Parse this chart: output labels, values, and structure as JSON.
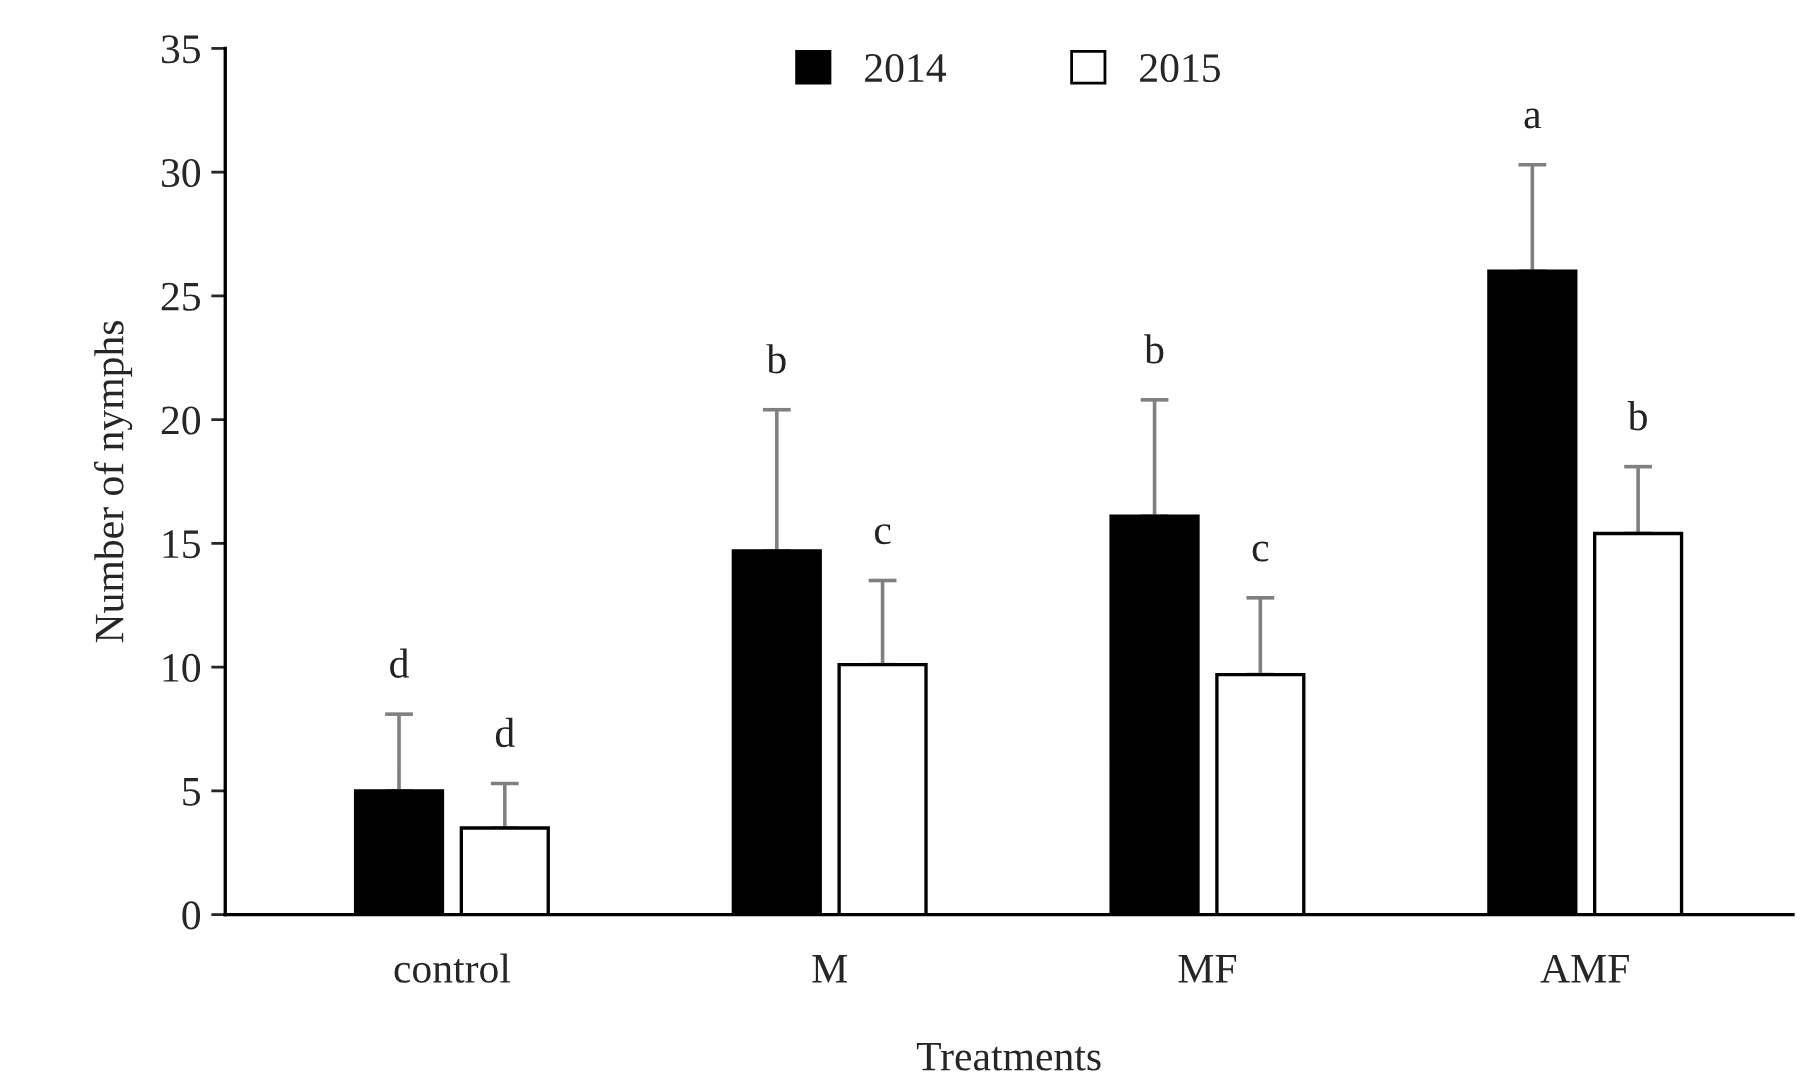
{
  "chart_data": {
    "type": "bar",
    "xlabel": "Treatments",
    "ylabel": "Number of nymphs",
    "categories": [
      "control",
      "M",
      "MF",
      "AMF"
    ],
    "series": [
      {
        "name": "2014",
        "color": "#000000",
        "values": [
          5.0,
          14.7,
          16.1,
          26.0
        ],
        "errors": [
          [
            5.0,
            8.1
          ],
          [
            14.7,
            20.4
          ],
          [
            16.1,
            20.8
          ],
          [
            26.0,
            30.3
          ]
        ]
      },
      {
        "name": "2015",
        "color": "#ffffff",
        "values": [
          3.5,
          10.1,
          9.7,
          15.4
        ],
        "errors": [
          [
            3.5,
            5.3
          ],
          [
            10.1,
            13.5
          ],
          [
            9.7,
            12.8
          ],
          [
            15.4,
            18.1
          ]
        ]
      }
    ],
    "annotations": [
      "d",
      "d",
      "b",
      "c",
      "b",
      "c",
      "a",
      "b"
    ],
    "ylim": [
      0,
      35
    ],
    "yticks": [
      0,
      5,
      10,
      15,
      20,
      25,
      30,
      35
    ],
    "grid": false,
    "legend": "top"
  }
}
